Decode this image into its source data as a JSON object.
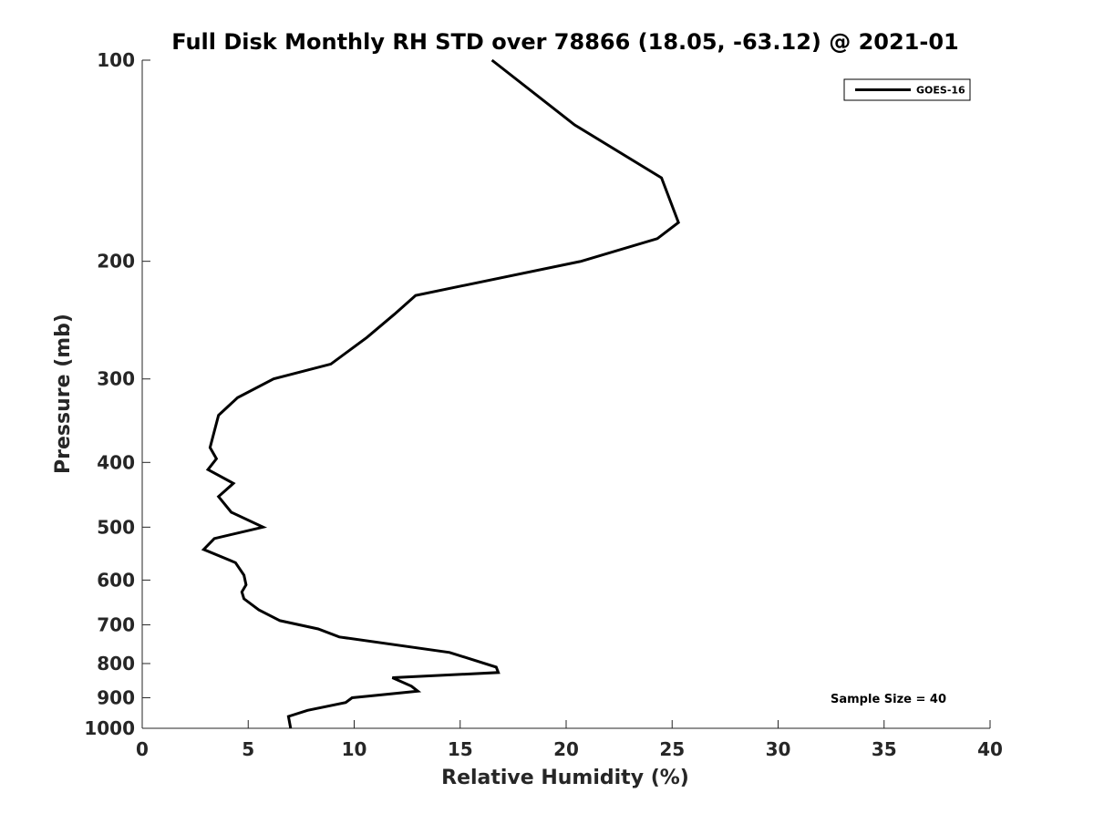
{
  "chart_data": {
    "type": "line",
    "title": "Full Disk Monthly RH STD over 78866 (18.05, -63.12) @ 2021-01",
    "xlabel": "Relative Humidity (%)",
    "ylabel": "Pressure (mb)",
    "xlim": [
      0,
      40
    ],
    "ylim": [
      100,
      1000
    ],
    "y_scale": "log",
    "y_reversed": true,
    "x_ticks": [
      0,
      5,
      10,
      15,
      20,
      25,
      30,
      35,
      40
    ],
    "x_tick_labels": [
      "0",
      "5",
      "10",
      "15",
      "20",
      "25",
      "30",
      "35",
      "40"
    ],
    "y_ticks": [
      100,
      200,
      300,
      400,
      500,
      600,
      700,
      800,
      900,
      1000
    ],
    "y_tick_labels": [
      "100",
      "200",
      "300",
      "400",
      "500",
      "600",
      "700",
      "800",
      "900",
      "1000"
    ],
    "grid": false,
    "legend_position": "top-right",
    "annotation": "Sample Size = 40",
    "series": [
      {
        "name": "GOES-16",
        "color": "#000000",
        "points": [
          [
            16.5,
            100
          ],
          [
            20.4,
            125
          ],
          [
            24.5,
            150
          ],
          [
            25.3,
            175
          ],
          [
            24.3,
            185
          ],
          [
            20.7,
            200
          ],
          [
            12.9,
            225
          ],
          [
            11.9,
            240
          ],
          [
            10.6,
            260
          ],
          [
            8.9,
            285
          ],
          [
            6.2,
            300
          ],
          [
            4.5,
            320
          ],
          [
            3.6,
            340
          ],
          [
            3.2,
            380
          ],
          [
            3.5,
            395
          ],
          [
            3.1,
            410
          ],
          [
            4.3,
            430
          ],
          [
            3.6,
            450
          ],
          [
            4.2,
            475
          ],
          [
            5.7,
            500
          ],
          [
            3.4,
            520
          ],
          [
            2.9,
            540
          ],
          [
            4.4,
            565
          ],
          [
            4.8,
            590
          ],
          [
            4.9,
            610
          ],
          [
            4.7,
            625
          ],
          [
            4.8,
            640
          ],
          [
            5.5,
            665
          ],
          [
            6.5,
            690
          ],
          [
            8.3,
            710
          ],
          [
            9.3,
            730
          ],
          [
            14.5,
            770
          ],
          [
            16.7,
            810
          ],
          [
            16.8,
            825
          ],
          [
            11.8,
            840
          ],
          [
            12.7,
            865
          ],
          [
            13.0,
            880
          ],
          [
            9.9,
            900
          ],
          [
            9.6,
            915
          ],
          [
            7.8,
            940
          ],
          [
            6.9,
            960
          ],
          [
            7.0,
            1000
          ]
        ]
      }
    ]
  }
}
